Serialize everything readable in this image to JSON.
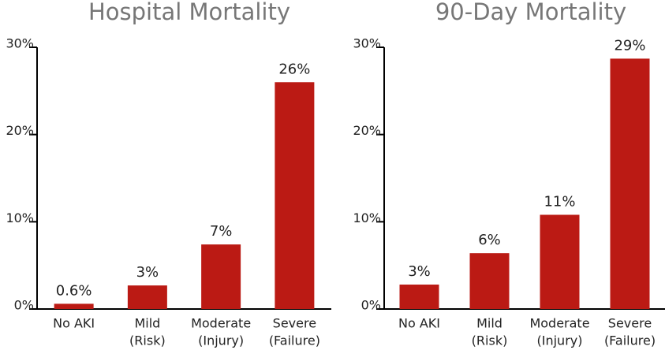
{
  "chart_data": [
    {
      "type": "bar",
      "title": "Hospital Mortality",
      "categories": [
        [
          "No AKI"
        ],
        [
          "Mild",
          "(Risk)"
        ],
        [
          "Moderate",
          "(Injury)"
        ],
        [
          "Severe",
          "(Failure)"
        ]
      ],
      "values": [
        0.6,
        2.7,
        7.4,
        26
      ],
      "value_labels": [
        "0.6%",
        "3%",
        "7%",
        "26%"
      ],
      "color": "#bb1a14",
      "ylim": [
        0,
        30
      ],
      "yticks": [
        {
          "value": 0,
          "label": "0%"
        },
        {
          "value": 10,
          "label": "10%"
        },
        {
          "value": 20,
          "label": "20%"
        },
        {
          "value": 30,
          "label": "30%"
        }
      ]
    },
    {
      "type": "bar",
      "title": "90-Day Mortality",
      "categories": [
        [
          "No AKI"
        ],
        [
          "Mild",
          "(Risk)"
        ],
        [
          "Moderate",
          "(Injury)"
        ],
        [
          "Severe",
          "(Failure)"
        ]
      ],
      "values": [
        2.8,
        6.4,
        10.8,
        28.7
      ],
      "value_labels": [
        "3%",
        "6%",
        "11%",
        "29%"
      ],
      "color": "#bb1a14",
      "ylim": [
        0,
        30
      ],
      "yticks": [
        {
          "value": 0,
          "label": "0%"
        },
        {
          "value": 10,
          "label": "10%"
        },
        {
          "value": 20,
          "label": "20%"
        },
        {
          "value": 30,
          "label": "30%"
        }
      ]
    }
  ]
}
